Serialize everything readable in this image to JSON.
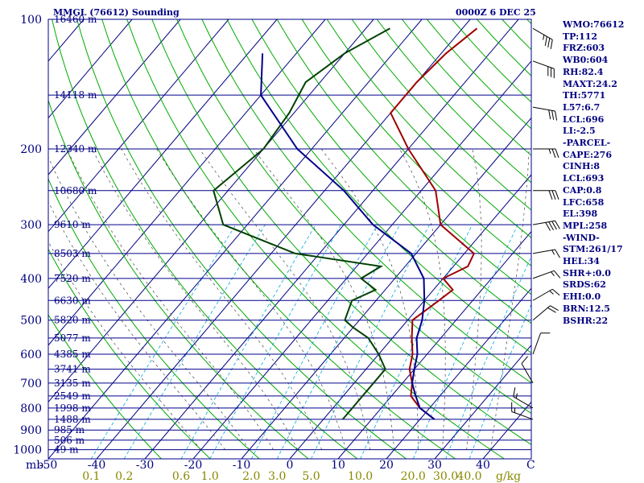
{
  "chart_data": {
    "type": "line",
    "title": "MMGL (76612) Sounding",
    "datetime": "0000Z  6 DEC 25",
    "pressure_unit_label": "mb",
    "temperature_unit_label": "C",
    "mixing_ratio_unit_label": "g/kg",
    "grid": true,
    "pressure_levels": [
      100,
      200,
      300,
      400,
      500,
      600,
      700,
      800,
      900,
      1000
    ],
    "temperature_ticks": [
      -50,
      -40,
      -30,
      -20,
      -10,
      0,
      10,
      20,
      30,
      40
    ],
    "temperature_range": [
      -50,
      50
    ],
    "mixing_ratio_ticks": [
      "0.1",
      "0.2",
      "0.6",
      "1.0",
      "2.0",
      "3.0",
      "5.0",
      "10.0",
      "20.0",
      "30.0",
      "40.0"
    ],
    "height_labels": [
      {
        "p": 100,
        "label": "16460 m"
      },
      {
        "p": 150,
        "label": "14118 m"
      },
      {
        "p": 200,
        "label": "12340 m"
      },
      {
        "p": 250,
        "label": "10680 m"
      },
      {
        "p": 300,
        "label": "9610 m"
      },
      {
        "p": 350,
        "label": "8503 m"
      },
      {
        "p": 400,
        "label": "7520 m"
      },
      {
        "p": 450,
        "label": "6630 m"
      },
      {
        "p": 500,
        "label": "5820 m"
      },
      {
        "p": 550,
        "label": "5077 m"
      },
      {
        "p": 600,
        "label": "4385 m"
      },
      {
        "p": 650,
        "label": "3741 m"
      },
      {
        "p": 700,
        "label": "3135 m"
      },
      {
        "p": 750,
        "label": "2549 m"
      },
      {
        "p": 800,
        "label": "1998 m"
      },
      {
        "p": 850,
        "label": "1488 m"
      },
      {
        "p": 900,
        "label": "985 m"
      },
      {
        "p": 950,
        "label": "506 m"
      },
      {
        "p": 1000,
        "label": "49 m"
      }
    ],
    "series": [
      {
        "kind": "temperature",
        "color": "#a00000",
        "points": [
          [
            105,
            -37
          ],
          [
            120,
            -39
          ],
          [
            140,
            -40
          ],
          [
            165,
            -40
          ],
          [
            200,
            -30
          ],
          [
            250,
            -17
          ],
          [
            300,
            -10
          ],
          [
            350,
            2
          ],
          [
            375,
            3
          ],
          [
            400,
            0
          ],
          [
            425,
            4
          ],
          [
            450,
            3
          ],
          [
            500,
            1
          ],
          [
            550,
            4
          ],
          [
            600,
            7
          ],
          [
            650,
            9
          ],
          [
            700,
            12
          ],
          [
            750,
            14
          ],
          [
            800,
            18
          ],
          [
            850,
            23
          ]
        ]
      },
      {
        "kind": "dewpoint",
        "color": "#004000",
        "points": [
          [
            105,
            -55
          ],
          [
            120,
            -60
          ],
          [
            140,
            -63
          ],
          [
            165,
            -61
          ],
          [
            200,
            -60
          ],
          [
            250,
            -63
          ],
          [
            300,
            -55
          ],
          [
            350,
            -35
          ],
          [
            375,
            -15
          ],
          [
            400,
            -17
          ],
          [
            425,
            -12
          ],
          [
            450,
            -15
          ],
          [
            500,
            -13
          ],
          [
            520,
            -10
          ],
          [
            550,
            -5
          ],
          [
            600,
            0
          ],
          [
            650,
            4
          ],
          [
            700,
            4
          ],
          [
            750,
            4
          ],
          [
            800,
            4
          ],
          [
            850,
            4
          ]
        ]
      },
      {
        "kind": "parcel",
        "color": "#00008b",
        "points": [
          [
            120,
            -77
          ],
          [
            150,
            -70
          ],
          [
            200,
            -53
          ],
          [
            250,
            -36
          ],
          [
            300,
            -24
          ],
          [
            350,
            -11
          ],
          [
            400,
            -4
          ],
          [
            450,
            0
          ],
          [
            500,
            3
          ],
          [
            550,
            5
          ],
          [
            600,
            8
          ],
          [
            650,
            10
          ],
          [
            700,
            12
          ],
          [
            750,
            15
          ],
          [
            800,
            18
          ],
          [
            850,
            23
          ]
        ]
      }
    ],
    "wind_profile": [
      {
        "p": 105,
        "dir": 300,
        "spd": 35
      },
      {
        "p": 125,
        "dir": 290,
        "spd": 30
      },
      {
        "p": 160,
        "dir": 280,
        "spd": 30
      },
      {
        "p": 200,
        "dir": 270,
        "spd": 25
      },
      {
        "p": 250,
        "dir": 270,
        "spd": 30
      },
      {
        "p": 300,
        "dir": 260,
        "spd": 40
      },
      {
        "p": 350,
        "dir": 260,
        "spd": 15
      },
      {
        "p": 400,
        "dir": 250,
        "spd": 15
      },
      {
        "p": 450,
        "dir": 240,
        "spd": 15
      },
      {
        "p": 500,
        "dir": 230,
        "spd": 20
      },
      {
        "p": 600,
        "dir": 200,
        "spd": 10
      },
      {
        "p": 700,
        "dir": 150,
        "spd": 10
      },
      {
        "p": 800,
        "dir": 120,
        "spd": 15
      },
      {
        "p": 850,
        "dir": 110,
        "spd": 15
      }
    ]
  },
  "indices": [
    "WMO:76612",
    "TP:112",
    "FRZ:603",
    "WB0:604",
    "RH:82.4",
    "MAXT:24.2",
    "TH:5771",
    "L57:6.7",
    "LCL:696",
    "LI:-2.5",
    "-PARCEL-",
    "CAPE:276",
    "CINH:8",
    "LCL:693",
    "CAP:0.8",
    "LFC:658",
    "EL:398",
    "MPL:258",
    "-WIND-",
    "STM:261/17",
    "HEL:34",
    "SHR+:0.0",
    "SRDS:62",
    "EHI:0.0",
    "BRN:12.5",
    "BSHR:22"
  ],
  "colors": {
    "isobar": "#00008b",
    "isotherm": "#000080",
    "dry_adiabat": "#00aa00",
    "moist_adiabat": "#444444",
    "mixing_ratio": "#00aadd",
    "temperature": "#a00000",
    "dewpoint": "#004000",
    "parcel": "#00008b",
    "tick_label": "#000080",
    "mr_label": "#888800"
  }
}
